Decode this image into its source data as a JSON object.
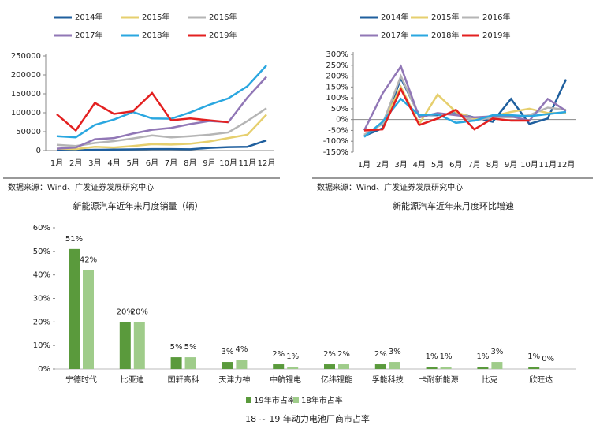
{
  "chart_data": [
    {
      "type": "line",
      "title": "新能源汽车近年来月度销量（辆）",
      "source": "数据来源：Wind、广发证券发展研究中心",
      "categories": [
        "1月",
        "2月",
        "3月",
        "4月",
        "5月",
        "6月",
        "7月",
        "8月",
        "9月",
        "10月",
        "11月",
        "12月"
      ],
      "ylim": [
        0,
        250000
      ],
      "yticks": [
        0,
        50000,
        100000,
        150000,
        200000,
        250000
      ],
      "series": [
        {
          "name": "2014年",
          "color": "#1f5f9e",
          "values": [
            1500,
            1000,
            2000,
            2500,
            3000,
            4000,
            4000,
            3500,
            7000,
            9000,
            10000,
            27000
          ]
        },
        {
          "name": "2015年",
          "color": "#e6cf6e",
          "values": [
            5000,
            4000,
            10000,
            8000,
            12000,
            17000,
            16000,
            18000,
            24000,
            33000,
            42000,
            95000
          ]
        },
        {
          "name": "2016年",
          "color": "#b5b5b5",
          "values": [
            15000,
            12000,
            20000,
            25000,
            32000,
            40000,
            35000,
            38000,
            42000,
            48000,
            78000,
            112000
          ]
        },
        {
          "name": "2017年",
          "color": "#9177b6",
          "values": [
            5000,
            8000,
            30000,
            33000,
            45000,
            55000,
            60000,
            70000,
            78000,
            75000,
            140000,
            195000
          ]
        },
        {
          "name": "2018年",
          "color": "#2aa7e0",
          "values": [
            38000,
            35000,
            68000,
            82000,
            102000,
            85000,
            84000,
            101000,
            121000,
            138000,
            170000,
            225000
          ]
        },
        {
          "name": "2019年",
          "color": "#e32020",
          "values": [
            96000,
            53000,
            126000,
            97000,
            104000,
            152000,
            80000,
            85000,
            80000,
            75000,
            null,
            null
          ]
        }
      ]
    },
    {
      "type": "line",
      "title": "新能源汽车近年来月度环比增速",
      "source": "数据来源：Wind、广发证券发展研究中心",
      "categories": [
        "1月",
        "2月",
        "3月",
        "4月",
        "5月",
        "6月",
        "7月",
        "8月",
        "9月",
        "10月",
        "11月",
        "12月"
      ],
      "ylim": [
        -150,
        300
      ],
      "yticks": [
        {
          "value": -150,
          "label": "-150%"
        },
        {
          "value": -100,
          "label": "-100%"
        },
        {
          "value": -50,
          "label": "-50%"
        },
        {
          "value": 0,
          "label": "0%"
        },
        {
          "value": 50,
          "label": "50%"
        },
        {
          "value": 100,
          "label": "100%"
        },
        {
          "value": 150,
          "label": "150%"
        },
        {
          "value": 200,
          "label": "200%"
        },
        {
          "value": 250,
          "label": "250%"
        },
        {
          "value": 300,
          "label": "300%"
        }
      ],
      "series": [
        {
          "name": "2014年",
          "color": "#1f5f9e",
          "values": [
            -75,
            -40,
            190,
            20,
            20,
            30,
            10,
            -10,
            95,
            -20,
            5,
            185
          ]
        },
        {
          "name": "2015年",
          "color": "#e6cf6e",
          "values": [
            -70,
            -20,
            150,
            -20,
            115,
            35,
            5,
            15,
            35,
            50,
            30,
            30
          ]
        },
        {
          "name": "2016年",
          "color": "#b5b5b5",
          "values": [
            -70,
            -20,
            200,
            15,
            25,
            25,
            -5,
            10,
            10,
            20,
            55,
            45
          ]
        },
        {
          "name": "2017年",
          "color": "#9177b6",
          "values": [
            -50,
            120,
            245,
            10,
            30,
            20,
            10,
            15,
            15,
            -5,
            95,
            40
          ]
        },
        {
          "name": "2018年",
          "color": "#2aa7e0",
          "values": [
            -80,
            -10,
            95,
            20,
            25,
            -15,
            -5,
            20,
            20,
            15,
            25,
            35
          ]
        },
        {
          "name": "2019年",
          "color": "#e32020",
          "values": [
            -50,
            -45,
            140,
            -25,
            5,
            45,
            -45,
            5,
            -5,
            -5,
            null,
            null
          ]
        }
      ]
    },
    {
      "type": "bar",
      "title": "18 ~ 19 年动力电池厂商市占率",
      "categories": [
        "宁德时代",
        "比亚迪",
        "国轩高科",
        "天津力神",
        "中航锂电",
        "亿纬锂能",
        "孚能科技",
        "卡耐新能源",
        "比克",
        "欣旺达"
      ],
      "ylim": [
        0,
        60
      ],
      "yticks": [
        {
          "value": 0,
          "label": "0%"
        },
        {
          "value": 10,
          "label": "10%"
        },
        {
          "value": 20,
          "label": "20%"
        },
        {
          "value": 30,
          "label": "30%"
        },
        {
          "value": 40,
          "label": "40%"
        },
        {
          "value": 50,
          "label": "50%"
        },
        {
          "value": 60,
          "label": "60%"
        }
      ],
      "series": [
        {
          "name": "19年市占率",
          "color": "#5a9a3c",
          "values": [
            51,
            20,
            5,
            3,
            2,
            2,
            2,
            1,
            1,
            1
          ],
          "value_labels": [
            "51%",
            "20%",
            "5%",
            "3%",
            "2%",
            "2%",
            "2%",
            "1%",
            "1%",
            "1%"
          ]
        },
        {
          "name": "18年市占率",
          "color": "#9fcc8a",
          "values": [
            42,
            20,
            5,
            4,
            1,
            2,
            3,
            1,
            3,
            0
          ],
          "value_labels": [
            "42%",
            "20%",
            "5%",
            "4%",
            "1%",
            "2%",
            "3%",
            "1%",
            "3%",
            "0%"
          ]
        }
      ]
    }
  ]
}
